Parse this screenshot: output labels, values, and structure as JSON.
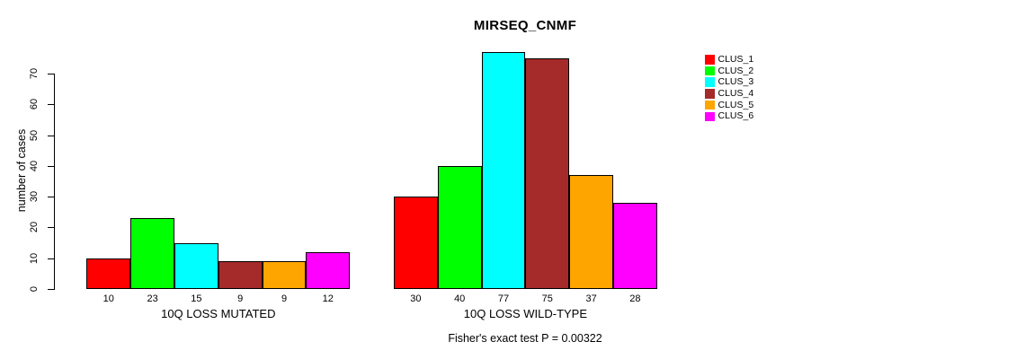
{
  "chart_data": {
    "type": "bar",
    "title": "MIRSEQ_CNMF",
    "ylabel": "number of cases",
    "xlabel": "",
    "ylim": [
      0,
      70
    ],
    "yticks": [
      0,
      10,
      20,
      30,
      40,
      50,
      60,
      70
    ],
    "grid": false,
    "bar_value_labels_shown": true,
    "series_labels": [
      "CLUS_1",
      "CLUS_2",
      "CLUS_3",
      "CLUS_4",
      "CLUS_5",
      "CLUS_6"
    ],
    "colors": [
      "#FF0000",
      "#00FF00",
      "#00FFFF",
      "#A52A2A",
      "#FFA500",
      "#FF00FF"
    ],
    "groups": [
      {
        "label": "10Q LOSS MUTATED",
        "values": [
          10,
          23,
          15,
          9,
          9,
          12
        ]
      },
      {
        "label": "10Q LOSS WILD-TYPE",
        "values": [
          30,
          40,
          77,
          75,
          37,
          28
        ]
      }
    ],
    "legend": {
      "position": "right-outside",
      "entries": [
        "CLUS_1",
        "CLUS_2",
        "CLUS_3",
        "CLUS_4",
        "CLUS_5",
        "CLUS_6"
      ]
    },
    "annotation": "Fisher's exact test P = 0.00322"
  }
}
